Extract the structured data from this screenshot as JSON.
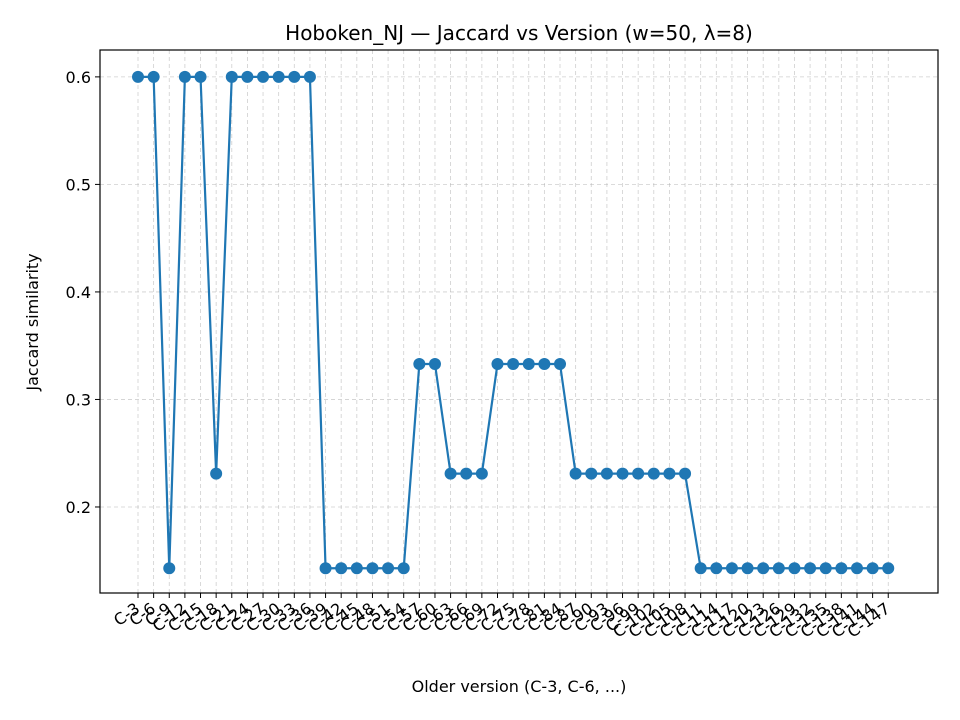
{
  "chart_data": {
    "type": "line",
    "title": "Hoboken_NJ — Jaccard vs Version (w=50, λ=8)",
    "xlabel": "Older version (C-3, C-6, ...)",
    "ylabel": "Jaccard similarity",
    "ylim": [
      0.12,
      0.625
    ],
    "yticks": [
      0.2,
      0.3,
      0.4,
      0.5,
      0.6
    ],
    "ytick_labels": [
      "0.2",
      "0.3",
      "0.4",
      "0.5",
      "0.6"
    ],
    "grid": true,
    "color": "#1f77b4",
    "categories": [
      "C-3",
      "C-6",
      "C-9",
      "C-12",
      "C-15",
      "C-18",
      "C-21",
      "C-24",
      "C-27",
      "C-30",
      "C-33",
      "C-36",
      "C-39",
      "C-42",
      "C-45",
      "C-48",
      "C-51",
      "C-54",
      "C-57",
      "C-60",
      "C-63",
      "C-66",
      "C-69",
      "C-72",
      "C-75",
      "C-78",
      "C-81",
      "C-84",
      "C-87",
      "C-90",
      "C-93",
      "C-96",
      "C-99",
      "C-102",
      "C-105",
      "C-108",
      "C-111",
      "C-114",
      "C-117",
      "C-120",
      "C-123",
      "C-126",
      "C-129",
      "C-132",
      "C-135",
      "C-138",
      "C-141",
      "C-144",
      "C-147"
    ],
    "values": [
      0.6,
      0.6,
      0.143,
      0.6,
      0.6,
      0.231,
      0.6,
      0.6,
      0.6,
      0.6,
      0.6,
      0.6,
      0.143,
      0.143,
      0.143,
      0.143,
      0.143,
      0.143,
      0.333,
      0.333,
      0.231,
      0.231,
      0.231,
      0.333,
      0.333,
      0.333,
      0.333,
      0.333,
      0.231,
      0.231,
      0.231,
      0.231,
      0.231,
      0.231,
      0.231,
      0.231,
      0.143,
      0.143,
      0.143,
      0.143,
      0.143,
      0.143,
      0.143,
      0.143,
      0.143,
      0.143,
      0.143,
      0.143,
      0.143
    ]
  }
}
